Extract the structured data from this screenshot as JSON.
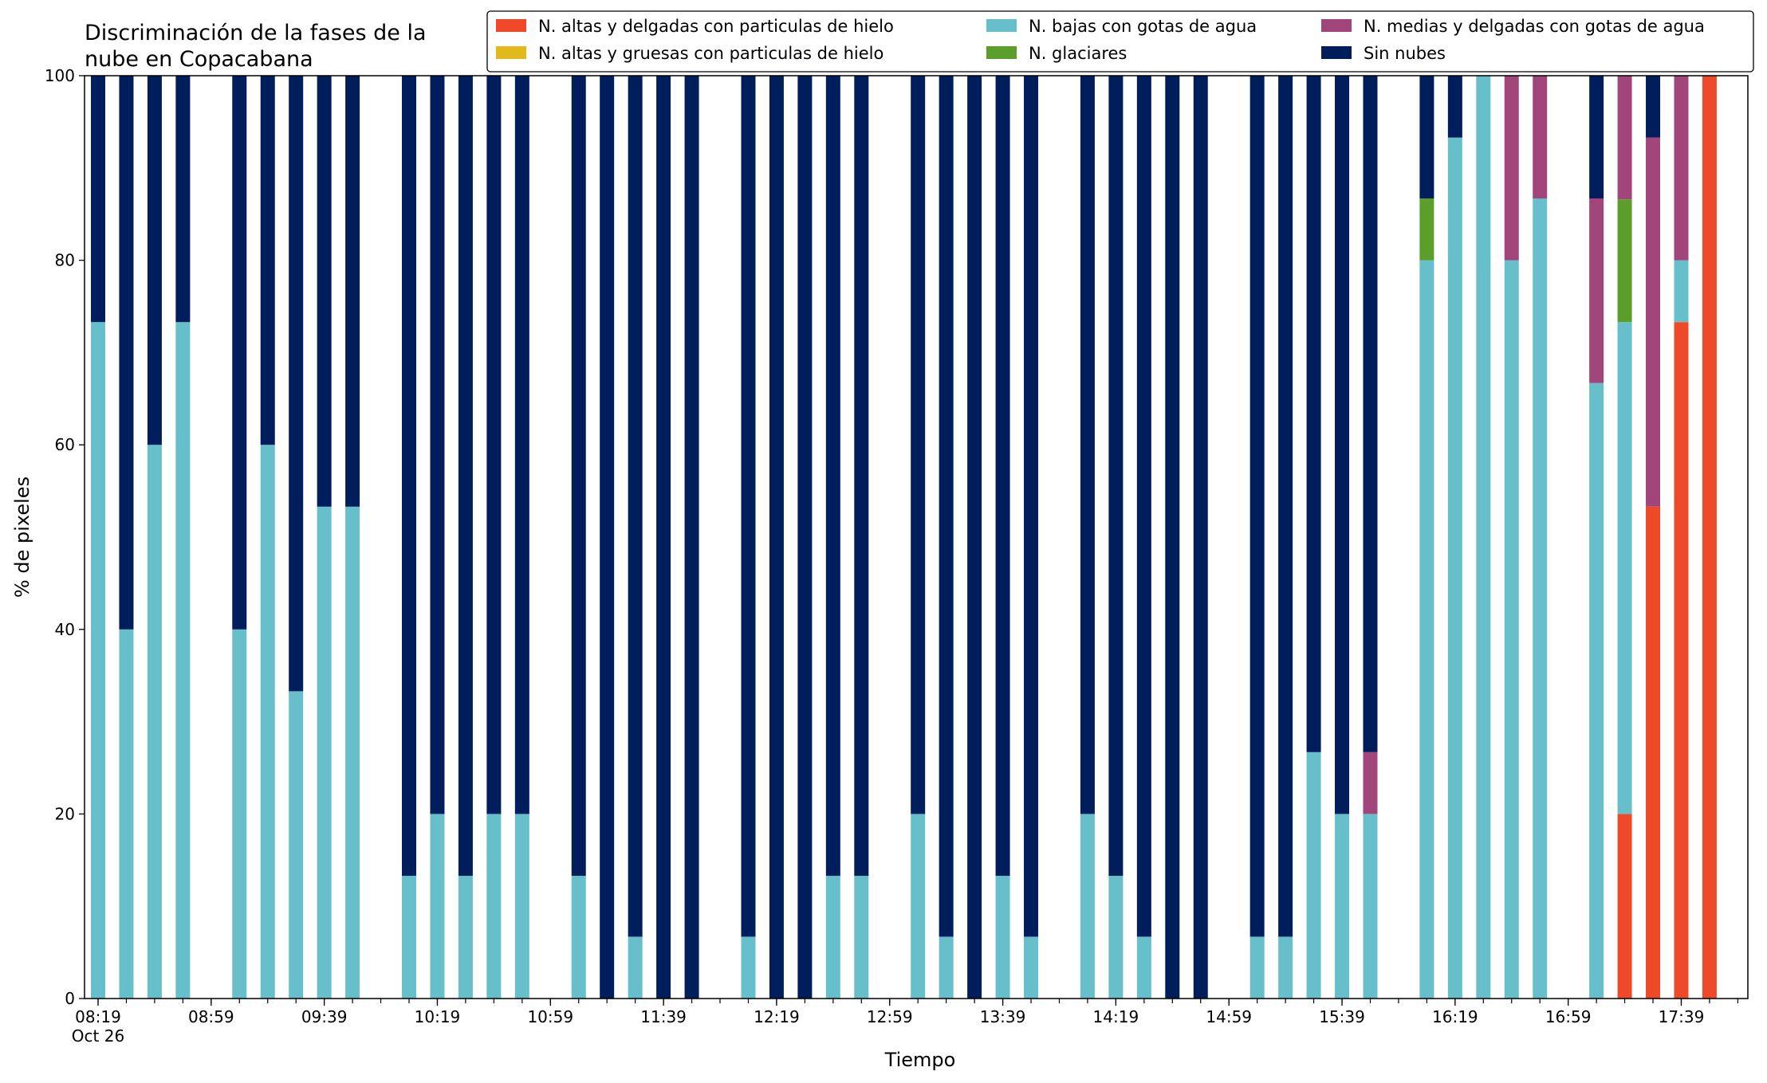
{
  "chart_data": {
    "type": "bar",
    "stacked": true,
    "title": "Discriminación de la fases de la nube en Copacabana",
    "title_lines": [
      "Discriminación de la fases de la",
      "nube en Copacabana"
    ],
    "xlabel": "Tiempo",
    "ylabel": "% de pixeles",
    "ylim": [
      0,
      100
    ],
    "yticks": [
      0,
      20,
      40,
      60,
      80,
      100
    ],
    "grid": false,
    "legend_position": "top-right",
    "x_start": "08:19",
    "x_end": "17:59",
    "interval_minutes": 10,
    "xtick_labels": [
      "08:19",
      "08:59",
      "09:39",
      "10:19",
      "10:59",
      "11:39",
      "12:19",
      "12:59",
      "13:39",
      "14:19",
      "14:59",
      "15:39",
      "16:19",
      "16:59",
      "17:39"
    ],
    "xtick_sublabel": "Oct 26",
    "series": [
      {
        "name": "N. altas y delgadas con particulas de hielo",
        "color": "#ee4a2a"
      },
      {
        "name": "N. altas y gruesas con particulas de hielo",
        "color": "#e2b81a"
      },
      {
        "name": "N. bajas con gotas de agua",
        "color": "#66bfca"
      },
      {
        "name": "N. glaciares",
        "color": "#5c9e2c"
      },
      {
        "name": "N. medias y delgadas con gotas de agua",
        "color": "#a2457b"
      },
      {
        "name": "Sin nubes",
        "color": "#001d5c"
      }
    ],
    "stack_order_bottom_to_top": [
      "N. altas y delgadas con particulas de hielo",
      "N. altas y gruesas con particulas de hielo",
      "N. bajas con gotas de agua",
      "N. glaciares",
      "N. medias y delgadas con gotas de agua",
      "Sin nubes"
    ],
    "bars": [
      {
        "time": "08:19",
        "values": [
          0,
          0,
          73.3,
          0,
          0,
          26.7
        ]
      },
      {
        "time": "08:29",
        "values": [
          0,
          0,
          40,
          0,
          0,
          60
        ]
      },
      {
        "time": "08:39",
        "values": [
          0,
          0,
          60,
          0,
          0,
          40
        ]
      },
      {
        "time": "08:49",
        "values": [
          0,
          0,
          73.3,
          0,
          0,
          26.7
        ]
      },
      {
        "time": "09:09",
        "values": [
          0,
          0,
          40,
          0,
          0,
          60
        ]
      },
      {
        "time": "09:19",
        "values": [
          0,
          0,
          60,
          0,
          0,
          40
        ]
      },
      {
        "time": "09:29",
        "values": [
          0,
          0,
          33.3,
          0,
          0,
          66.7
        ]
      },
      {
        "time": "09:39",
        "values": [
          0,
          0,
          53.3,
          0,
          0,
          46.7
        ]
      },
      {
        "time": "09:49",
        "values": [
          0,
          0,
          53.3,
          0,
          0,
          46.7
        ]
      },
      {
        "time": "10:09",
        "values": [
          0,
          0,
          13.3,
          0,
          0,
          86.7
        ]
      },
      {
        "time": "10:19",
        "values": [
          0,
          0,
          20,
          0,
          0,
          80
        ]
      },
      {
        "time": "10:29",
        "values": [
          0,
          0,
          13.3,
          0,
          0,
          86.7
        ]
      },
      {
        "time": "10:39",
        "values": [
          0,
          0,
          20,
          0,
          0,
          80
        ]
      },
      {
        "time": "10:49",
        "values": [
          0,
          0,
          20,
          0,
          0,
          80
        ]
      },
      {
        "time": "11:09",
        "values": [
          0,
          0,
          13.3,
          0,
          0,
          86.7
        ]
      },
      {
        "time": "11:19",
        "values": [
          0,
          0,
          0,
          0,
          0,
          100
        ]
      },
      {
        "time": "11:29",
        "values": [
          0,
          0,
          6.7,
          0,
          0,
          93.3
        ]
      },
      {
        "time": "11:39",
        "values": [
          0,
          0,
          0,
          0,
          0,
          100
        ]
      },
      {
        "time": "11:49",
        "values": [
          0,
          0,
          0,
          0,
          0,
          100
        ]
      },
      {
        "time": "12:09",
        "values": [
          0,
          0,
          6.7,
          0,
          0,
          93.3
        ]
      },
      {
        "time": "12:19",
        "values": [
          0,
          0,
          0,
          0,
          0,
          100
        ]
      },
      {
        "time": "12:29",
        "values": [
          0,
          0,
          0,
          0,
          0,
          100
        ]
      },
      {
        "time": "12:39",
        "values": [
          0,
          0,
          13.3,
          0,
          0,
          86.7
        ]
      },
      {
        "time": "12:49",
        "values": [
          0,
          0,
          13.3,
          0,
          0,
          86.7
        ]
      },
      {
        "time": "13:09",
        "values": [
          0,
          0,
          20,
          0,
          0,
          80
        ]
      },
      {
        "time": "13:19",
        "values": [
          0,
          0,
          6.7,
          0,
          0,
          93.3
        ]
      },
      {
        "time": "13:29",
        "values": [
          0,
          0,
          0,
          0,
          0,
          100
        ]
      },
      {
        "time": "13:39",
        "values": [
          0,
          0,
          13.3,
          0,
          0,
          86.7
        ]
      },
      {
        "time": "13:49",
        "values": [
          0,
          0,
          6.7,
          0,
          0,
          93.3
        ]
      },
      {
        "time": "14:09",
        "values": [
          0,
          0,
          20,
          0,
          0,
          80
        ]
      },
      {
        "time": "14:19",
        "values": [
          0,
          0,
          13.3,
          0,
          0,
          86.7
        ]
      },
      {
        "time": "14:29",
        "values": [
          0,
          0,
          6.7,
          0,
          0,
          93.3
        ]
      },
      {
        "time": "14:39",
        "values": [
          0,
          0,
          0,
          0,
          0,
          100
        ]
      },
      {
        "time": "14:49",
        "values": [
          0,
          0,
          0,
          0,
          0,
          100
        ]
      },
      {
        "time": "15:09",
        "values": [
          0,
          0,
          6.7,
          0,
          0,
          93.3
        ]
      },
      {
        "time": "15:19",
        "values": [
          0,
          0,
          6.7,
          0,
          0,
          93.3
        ]
      },
      {
        "time": "15:29",
        "values": [
          0,
          0,
          26.7,
          0,
          0,
          73.3
        ]
      },
      {
        "time": "15:39",
        "values": [
          0,
          0,
          20,
          0,
          0,
          80
        ]
      },
      {
        "time": "15:49",
        "values": [
          0,
          0,
          20,
          0,
          6.7,
          73.3
        ]
      },
      {
        "time": "16:09",
        "values": [
          0,
          0,
          80,
          6.7,
          0,
          13.3
        ]
      },
      {
        "time": "16:19",
        "values": [
          0,
          0,
          93.3,
          0,
          0,
          6.7
        ]
      },
      {
        "time": "16:29",
        "values": [
          0,
          0,
          100,
          0,
          0,
          0
        ]
      },
      {
        "time": "16:39",
        "values": [
          0,
          0,
          80,
          0,
          20,
          0
        ]
      },
      {
        "time": "16:49",
        "values": [
          0,
          0,
          86.7,
          0,
          13.3,
          0
        ]
      },
      {
        "time": "17:09",
        "values": [
          0,
          0,
          66.7,
          0,
          20,
          13.3
        ]
      },
      {
        "time": "17:19",
        "values": [
          20,
          0,
          53.3,
          13.3,
          13.4,
          0
        ]
      },
      {
        "time": "17:29",
        "values": [
          53.3,
          0,
          0,
          0,
          40,
          6.7
        ]
      },
      {
        "time": "17:39",
        "values": [
          73.3,
          0,
          6.7,
          0,
          20,
          0
        ]
      },
      {
        "time": "17:49",
        "values": [
          100,
          0,
          0,
          0,
          0,
          0
        ]
      }
    ]
  }
}
